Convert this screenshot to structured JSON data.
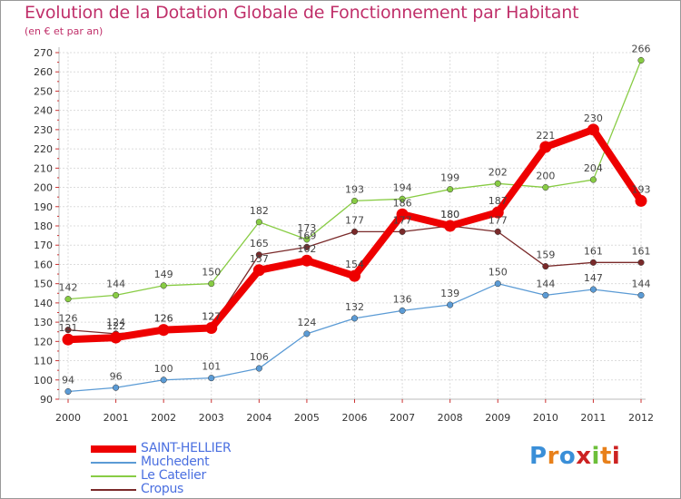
{
  "title": "Evolution de la Dotation Globale de Fonctionnement par Habitant",
  "subtitle": "(en € et par an)",
  "logo": {
    "letters": [
      "P",
      "r",
      "o",
      "x",
      "i",
      "t",
      "i"
    ],
    "colors": [
      "#3a8fd8",
      "#e8801a",
      "#3a8fd8",
      "#cc2222",
      "#6cbf3a",
      "#e8801a",
      "#cc2222"
    ]
  },
  "chart_data": {
    "type": "line",
    "title": "Evolution de la Dotation Globale de Fonctionnement par Habitant",
    "subtitle": "(en € et par an)",
    "xlabel": "",
    "ylabel": "",
    "ylim": [
      90,
      270
    ],
    "yticks": [
      90,
      100,
      110,
      120,
      130,
      140,
      150,
      160,
      170,
      180,
      190,
      200,
      210,
      220,
      230,
      240,
      250,
      260,
      270
    ],
    "x": [
      "2000",
      "2001",
      "2002",
      "2003",
      "2004",
      "2005",
      "2006",
      "2007",
      "2008",
      "2009",
      "2010",
      "2011",
      "2012"
    ],
    "series": [
      {
        "name": "SAINT-HELLIER",
        "color": "#ee0000",
        "values": [
          121,
          122,
          126,
          127,
          157,
          162,
          154,
          186,
          180,
          187,
          221,
          230,
          193
        ]
      },
      {
        "name": "Muchedent",
        "color": "#5b9bd5",
        "values": [
          94,
          96,
          100,
          101,
          106,
          124,
          132,
          136,
          139,
          150,
          144,
          147,
          144
        ]
      },
      {
        "name": "Le Catelier",
        "color": "#88cc44",
        "values": [
          142,
          144,
          149,
          150,
          182,
          173,
          193,
          194,
          199,
          202,
          200,
          204,
          266
        ]
      },
      {
        "name": "Cropus",
        "color": "#7a2a2a",
        "values": [
          126,
          124,
          126,
          127,
          165,
          169,
          177,
          177,
          180,
          177,
          159,
          161,
          161
        ]
      }
    ],
    "legend": [
      "SAINT-HELLIER",
      "Muchedent",
      "Le Catelier",
      "Cropus"
    ],
    "legend_position": "bottom-left"
  }
}
